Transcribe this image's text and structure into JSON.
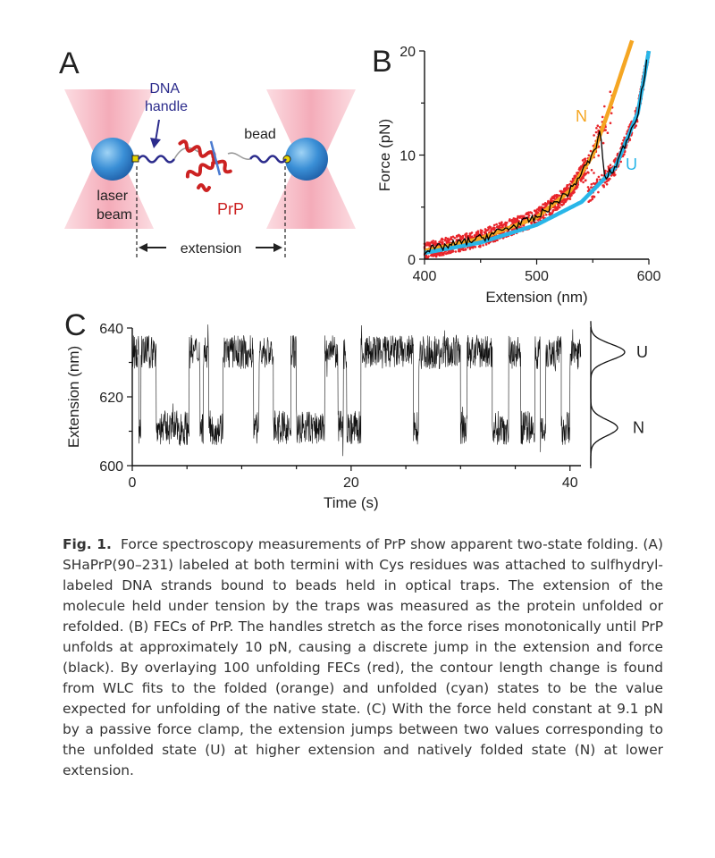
{
  "panel_a": {
    "label": "A",
    "dna_handle": "DNA\nhandle",
    "bead": "bead",
    "laser_beam": "laser\nbeam",
    "protein": "PrP",
    "extension": "extension",
    "colors": {
      "laser": "#f4a7b5",
      "bead": "#2a8ad0",
      "dna": "#2c2c8c",
      "protein": "#cc2222"
    }
  },
  "panel_b": {
    "label": "B",
    "xlabel": "Extension (nm)",
    "ylabel": "Force (pN)",
    "xticks": [
      "400",
      "500",
      "600"
    ],
    "yticks": [
      "0",
      "10",
      "20"
    ],
    "curve_labels": {
      "folded": "N",
      "unfolded": "U"
    },
    "colors": {
      "overlay": "#e8242a",
      "folded": "#f5a623",
      "unfolded": "#29b6e8",
      "single": "#000000"
    }
  },
  "panel_c": {
    "label": "C",
    "xlabel": "Time (s)",
    "ylabel": "Extension (nm)",
    "xticks": [
      "0",
      "20",
      "40"
    ],
    "yticks": [
      "600",
      "620",
      "640"
    ],
    "state_labels": {
      "unfolded": "U",
      "native": "N"
    }
  },
  "chart_data": [
    {
      "panel": "B",
      "type": "scatter",
      "xlabel": "Extension (nm)",
      "ylabel": "Force (pN)",
      "xlim": [
        400,
        600
      ],
      "ylim": [
        0,
        20
      ],
      "series": [
        {
          "name": "N",
          "values": [
            [
              400,
              0.8
            ],
            [
              450,
              2.0
            ],
            [
              500,
              4.0
            ],
            [
              530,
              6.6
            ],
            [
              550,
              10.0
            ],
            [
              565,
              14.5
            ],
            [
              585,
              21.0
            ]
          ]
        },
        {
          "name": "U",
          "values": [
            [
              400,
              0.6
            ],
            [
              450,
              1.6
            ],
            [
              500,
              3.3
            ],
            [
              540,
              5.5
            ],
            [
              570,
              8.8
            ],
            [
              590,
              14.0
            ],
            [
              600,
              20.0
            ]
          ]
        }
      ],
      "unfolding_force_pN": 10
    },
    {
      "panel": "C",
      "type": "line",
      "xlabel": "Time (s)",
      "ylabel": "Extension (nm)",
      "xlim": [
        0,
        41
      ],
      "ylim": [
        600,
        640
      ],
      "state_levels": {
        "U": 633,
        "N": 611
      },
      "force_pN": 9.1,
      "dwells": [
        [
          "U",
          0,
          0.6
        ],
        [
          "N",
          0.6,
          0.8
        ],
        [
          "U",
          0.8,
          2.2
        ],
        [
          "N",
          2.2,
          5.2
        ],
        [
          "U",
          5.2,
          6.2
        ],
        [
          "N",
          6.2,
          6.5
        ],
        [
          "U",
          6.5,
          7.0
        ],
        [
          "N",
          7.0,
          8.3
        ],
        [
          "U",
          8.3,
          11.1
        ],
        [
          "N",
          11.1,
          11.6
        ],
        [
          "U",
          11.6,
          12.9
        ],
        [
          "N",
          12.9,
          14.5
        ],
        [
          "U",
          14.5,
          15.0
        ],
        [
          "N",
          15.0,
          17.6
        ],
        [
          "U",
          17.6,
          18.8
        ],
        [
          "N",
          18.8,
          19.3
        ],
        [
          "U",
          19.3,
          19.6
        ],
        [
          "N",
          19.6,
          20.9
        ],
        [
          "U",
          20.9,
          25.7
        ],
        [
          "N",
          25.7,
          26.2
        ],
        [
          "U",
          26.2,
          30.0
        ],
        [
          "N",
          30.0,
          30.6
        ],
        [
          "U",
          30.6,
          32.9
        ],
        [
          "N",
          32.9,
          34.4
        ],
        [
          "U",
          34.4,
          35.5
        ],
        [
          "N",
          35.5,
          36.8
        ],
        [
          "U",
          36.8,
          37.3
        ],
        [
          "N",
          37.3,
          37.8
        ],
        [
          "U",
          37.8,
          39.2
        ],
        [
          "N",
          39.2,
          40.0
        ],
        [
          "U",
          40.0,
          41.0
        ]
      ]
    }
  ],
  "caption": {
    "fig_label": "Fig. 1.",
    "text": "Force spectroscopy measurements of PrP show apparent two-state folding. (A) SHaPrP(90–231) labeled at both termini with Cys residues was attached to sulfhydryl-labeled DNA strands bound to beads held in optical traps. The extension of the molecule held under tension by the traps was measured as the protein unfolded or refolded. (B) FECs of PrP. The handles stretch as the force rises monotonically until PrP unfolds at approximately 10 pN, causing a discrete jump in the extension and force (black). By overlaying 100 unfolding FECs (red), the contour length change is found from WLC fits to the folded (orange) and unfolded (cyan) states to be the value expected for unfolding of the native state. (C) With the force held constant at 9.1 pN by a passive force clamp, the extension jumps between two values corresponding to the unfolded state (U) at higher extension and natively folded state (N) at lower extension."
  }
}
